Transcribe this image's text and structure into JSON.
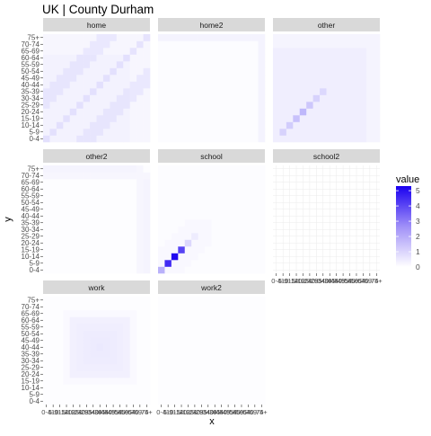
{
  "chart_data": {
    "type": "heatmap",
    "title": "UK | County Durham",
    "xlabel": "x",
    "ylabel": "y",
    "age_groups": [
      "0-4",
      "5-9",
      "10-14",
      "15-19",
      "20-24",
      "25-29",
      "30-34",
      "35-39",
      "40-44",
      "45-49",
      "50-54",
      "55-59",
      "60-64",
      "65-69",
      "70-74",
      "75+"
    ],
    "panels": [
      {
        "name": "home",
        "pattern": "home"
      },
      {
        "name": "home2",
        "pattern": "home2"
      },
      {
        "name": "other",
        "pattern": "other"
      },
      {
        "name": "other2",
        "pattern": "other2"
      },
      {
        "name": "school",
        "pattern": "school"
      },
      {
        "name": "school2",
        "pattern": "empty"
      },
      {
        "name": "work",
        "pattern": "work"
      },
      {
        "name": "work2",
        "pattern": "work2"
      }
    ],
    "school_diagonal_values": [
      1.2,
      4.2,
      5.1,
      3.6,
      0.5,
      0.2
    ],
    "other_diagonal_values": [
      0.6,
      0.7,
      0.9,
      1.1,
      0.8,
      0.6,
      0.5
    ],
    "legend": {
      "title": "value",
      "ticks": [
        "0",
        "1",
        "2",
        "3",
        "4",
        "5"
      ],
      "min": 0,
      "max": 5.3,
      "low_color": "#ffffff",
      "high_color": "#1a00f0",
      "position": "right"
    },
    "colors": {
      "panel_bg": "#ffffff",
      "strip_bg": "#d9d9d9",
      "grid": "#ebebeb"
    }
  }
}
